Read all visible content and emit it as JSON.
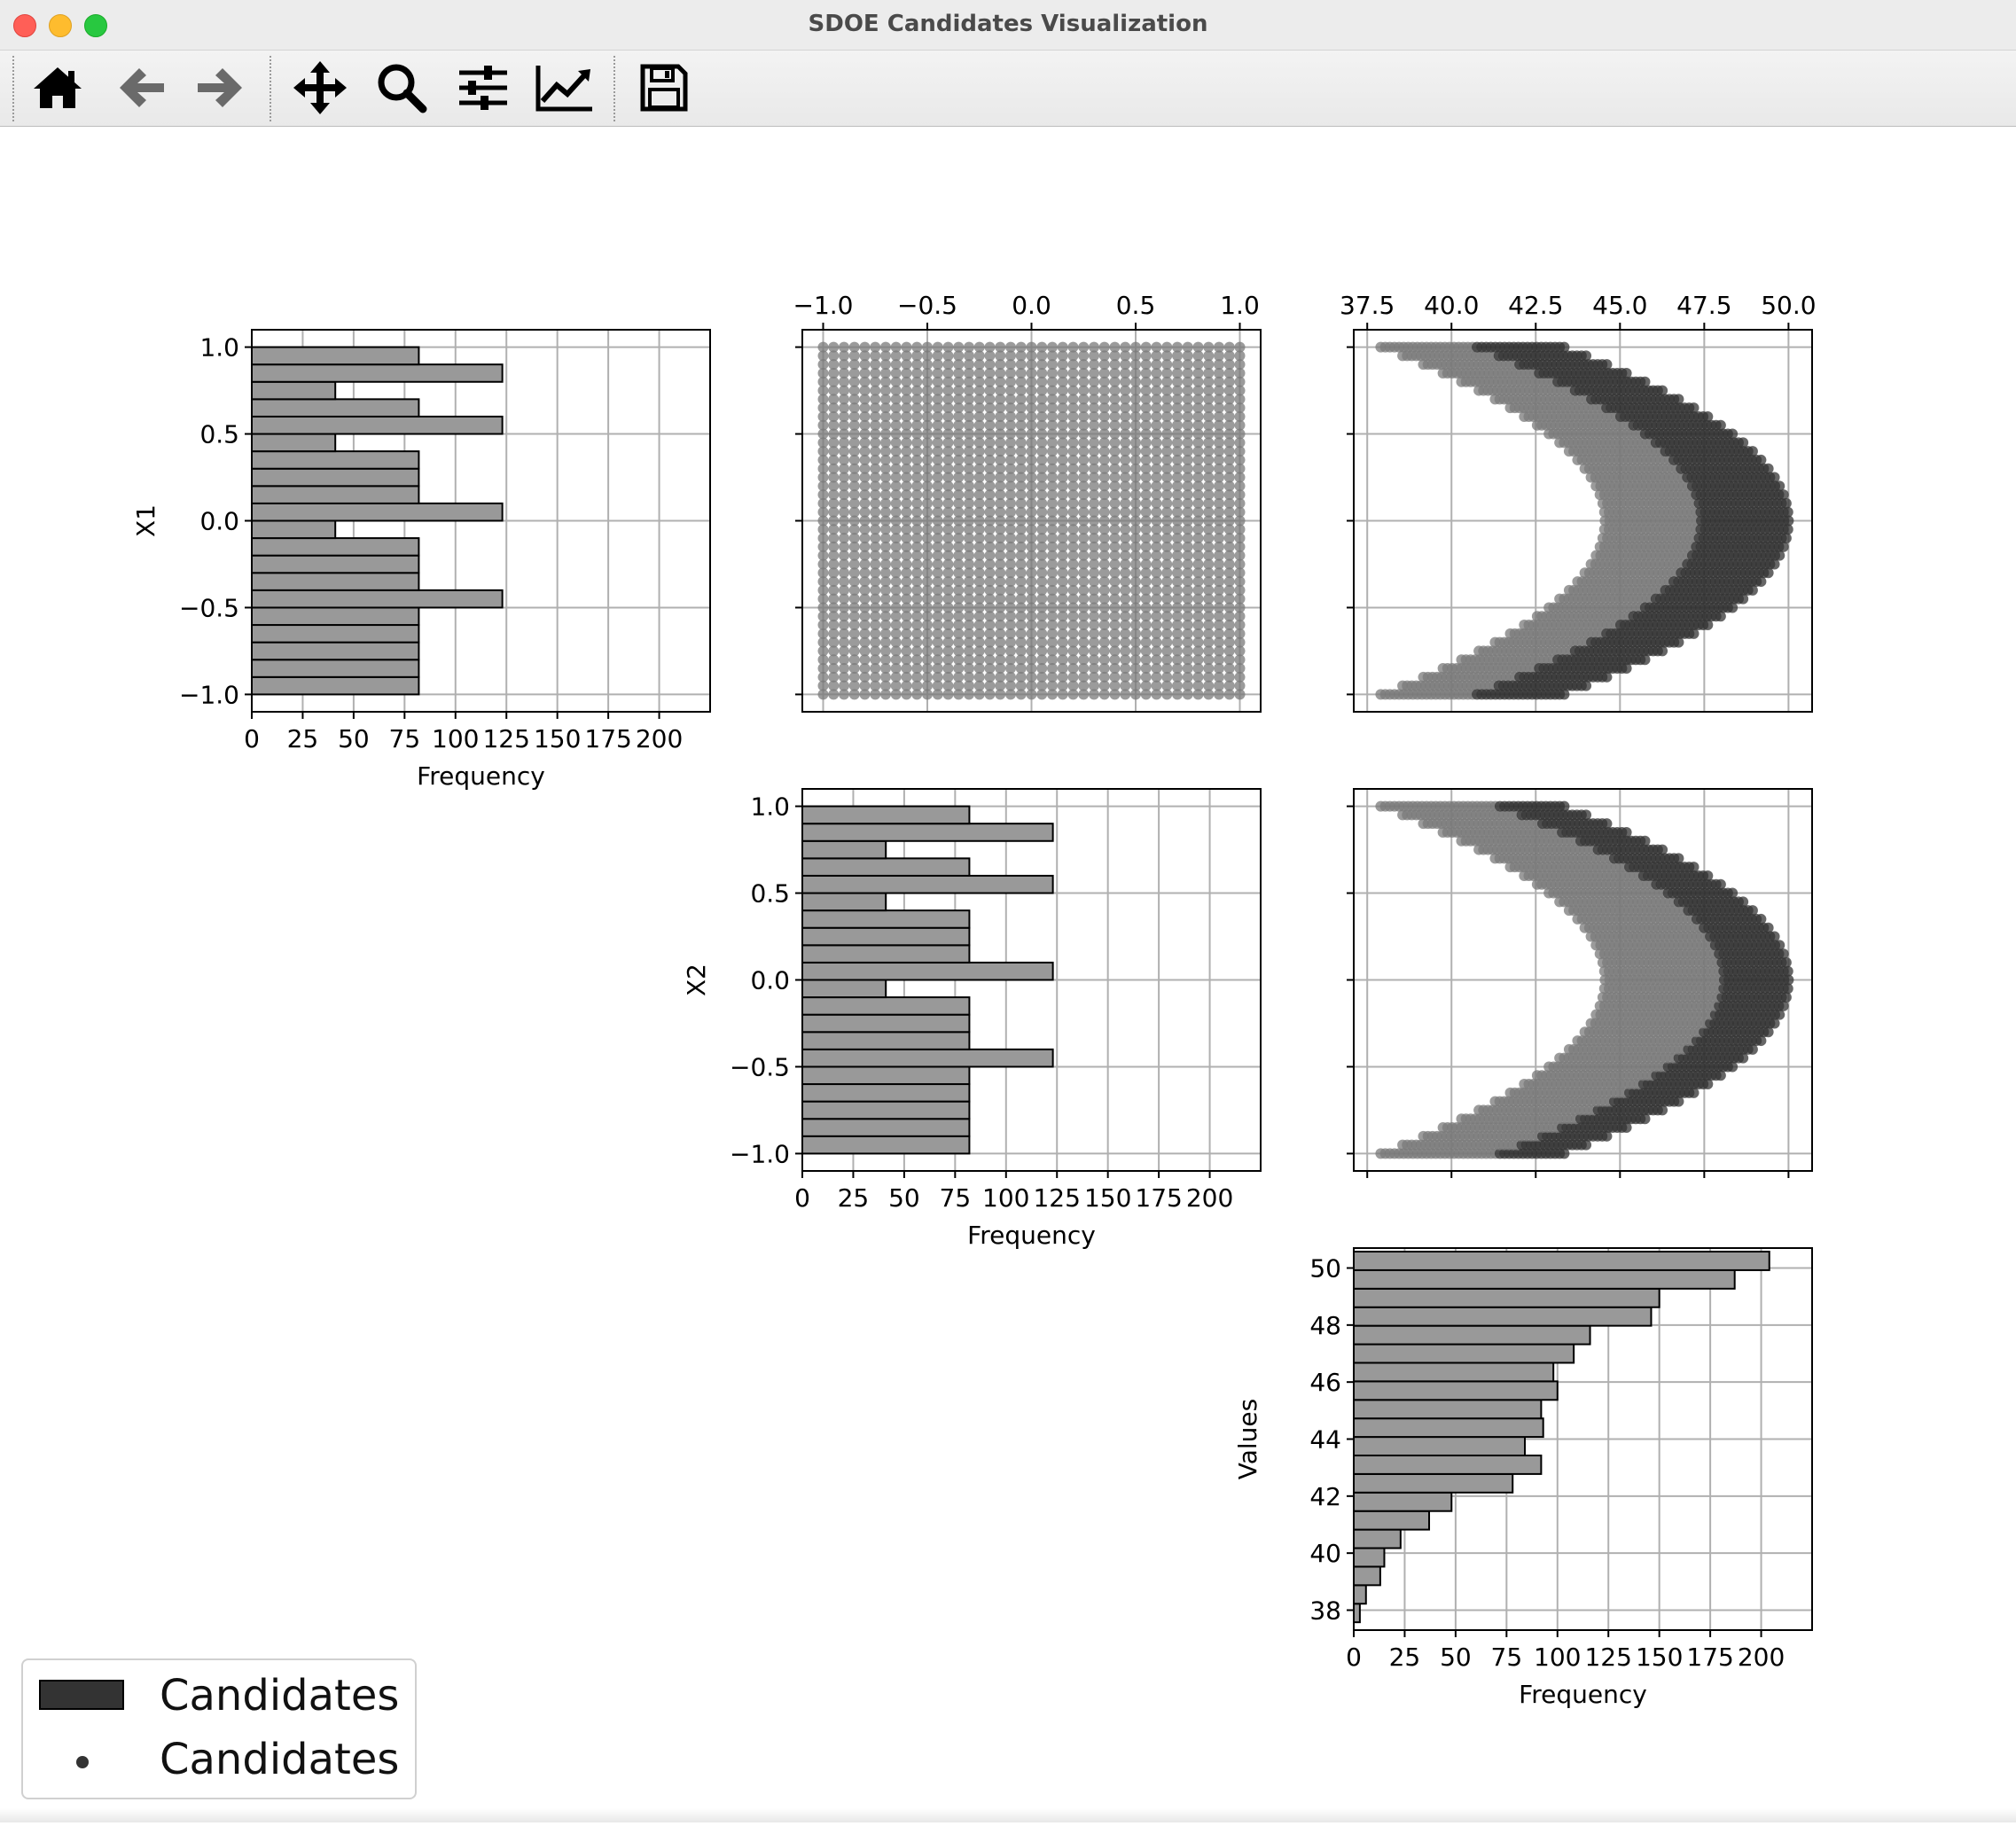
{
  "window": {
    "title": "SDOE Candidates Visualization"
  },
  "toolbar": {
    "buttons": [
      {
        "name": "home-button",
        "icon": "home-icon"
      },
      {
        "name": "back-button",
        "icon": "arrow-left-icon"
      },
      {
        "name": "forward-button",
        "icon": "arrow-right-icon"
      },
      {
        "name": "pan-button",
        "icon": "move-icon"
      },
      {
        "name": "zoom-button",
        "icon": "magnifier-icon"
      },
      {
        "name": "configure-subplots-button",
        "icon": "sliders-icon"
      },
      {
        "name": "edit-axis-button",
        "icon": "line-chart-icon"
      },
      {
        "name": "save-button",
        "icon": "floppy-disk-icon"
      }
    ]
  },
  "legend": {
    "entries": [
      {
        "label": "Candidates",
        "marker": "patch"
      },
      {
        "label": "Candidates",
        "marker": "dot"
      }
    ]
  },
  "colors": {
    "bar_fill": "#999999",
    "bar_edge": "#000000",
    "scatter_light": "#7a7a7a",
    "scatter_dark": "#333333",
    "grid": "#b0b0b0"
  },
  "chart_data": [
    {
      "type": "bar",
      "orientation": "horizontal",
      "ylabel": "X1",
      "xlabel": "Frequency",
      "xlim": [
        0,
        225
      ],
      "ylim": [
        -1.1,
        1.1
      ],
      "xticks": [
        "0",
        "25",
        "50",
        "75",
        "100",
        "125",
        "150",
        "175",
        "200"
      ],
      "yticks": [
        "1.0",
        "0.5",
        "0.0",
        "−0.5",
        "−1.0"
      ],
      "grid": true,
      "bin_centers": [
        -0.95,
        -0.85,
        -0.75,
        -0.65,
        -0.55,
        -0.45,
        -0.35,
        -0.25,
        -0.15,
        -0.05,
        0.05,
        0.15,
        0.25,
        0.35,
        0.45,
        0.55,
        0.65,
        0.75,
        0.85,
        0.95
      ],
      "values": [
        82,
        82,
        82,
        82,
        82,
        123,
        82,
        82,
        82,
        41,
        123,
        82,
        82,
        82,
        41,
        123,
        82,
        41,
        123,
        82
      ]
    },
    {
      "type": "scatter",
      "note_x_values_in_units": "X2",
      "xticks": [
        "−1.0",
        "−0.5",
        "0.0",
        "0.5",
        "1.0"
      ],
      "xlim": [
        -1.1,
        1.1
      ],
      "ylim": [
        -1.1,
        1.1
      ],
      "x_axis_position": "top",
      "grid": true,
      "series": [
        {
          "x_grid_count": 41,
          "y_grid_count": 41,
          "x_range": [
            -1,
            1
          ],
          "y_range": [
            -1,
            1
          ]
        }
      ]
    },
    {
      "type": "scatter",
      "xticks": [
        "37.5",
        "40.0",
        "42.5",
        "45.0",
        "47.5",
        "50.0"
      ],
      "xlim": [
        37.1,
        50.7
      ],
      "ylim": [
        -1.1,
        1.1
      ],
      "x_axis_position": "top",
      "grid": true,
      "series": [
        {
          "x_is": "Values",
          "y_is": "X1"
        }
      ]
    },
    {
      "type": "bar",
      "orientation": "horizontal",
      "ylabel": "X2",
      "xlabel": "Frequency",
      "xlim": [
        0,
        225
      ],
      "ylim": [
        -1.1,
        1.1
      ],
      "xticks": [
        "0",
        "25",
        "50",
        "75",
        "100",
        "125",
        "150",
        "175",
        "200"
      ],
      "yticks": [
        "1.0",
        "0.5",
        "0.0",
        "−0.5",
        "−1.0"
      ],
      "grid": true,
      "bin_centers": [
        -0.95,
        -0.85,
        -0.75,
        -0.65,
        -0.55,
        -0.45,
        -0.35,
        -0.25,
        -0.15,
        -0.05,
        0.05,
        0.15,
        0.25,
        0.35,
        0.45,
        0.55,
        0.65,
        0.75,
        0.85,
        0.95
      ],
      "values": [
        82,
        82,
        82,
        82,
        82,
        123,
        82,
        82,
        82,
        41,
        123,
        82,
        82,
        82,
        41,
        123,
        82,
        41,
        123,
        82
      ]
    },
    {
      "type": "scatter",
      "xlim": [
        37.1,
        50.7
      ],
      "ylim": [
        -1.1,
        1.1
      ],
      "grid": true,
      "series": [
        {
          "x_is": "Values",
          "y_is": "X2"
        }
      ]
    },
    {
      "type": "bar",
      "orientation": "horizontal",
      "ylabel": "Values",
      "xlabel": "Frequency",
      "xlim": [
        0,
        225
      ],
      "ylim": [
        37.3,
        50.7
      ],
      "xticks": [
        "0",
        "25",
        "50",
        "75",
        "100",
        "125",
        "150",
        "175",
        "200"
      ],
      "yticks": [
        "50",
        "48",
        "46",
        "44",
        "42",
        "40",
        "38"
      ],
      "grid": true,
      "bin_centers": [
        37.9,
        38.55,
        39.2,
        39.85,
        40.5,
        41.15,
        41.8,
        42.45,
        43.1,
        43.75,
        44.4,
        45.05,
        45.7,
        46.35,
        47.0,
        47.65,
        48.3,
        48.95,
        49.6,
        50.25
      ],
      "values": [
        3,
        6,
        13,
        15,
        23,
        37,
        48,
        78,
        92,
        84,
        93,
        92,
        100,
        98,
        108,
        116,
        146,
        150,
        187,
        204
      ]
    }
  ]
}
